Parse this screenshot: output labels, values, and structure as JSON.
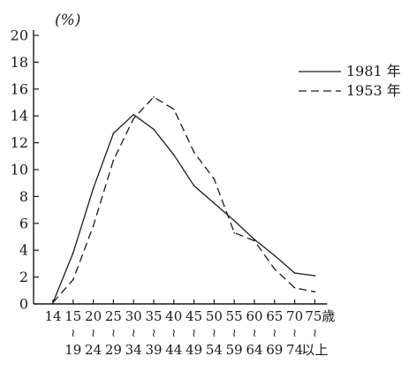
{
  "chart_data": {
    "type": "line",
    "unit_label": "(%)",
    "ylim": [
      0,
      20
    ],
    "y_ticks": [
      "0",
      "2",
      "4",
      "6",
      "8",
      "10",
      "12",
      "14",
      "16",
      "18",
      "20"
    ],
    "x_tick_labels": [
      {
        "top": "14",
        "bottom": ""
      },
      {
        "top": "15",
        "bottom": "19"
      },
      {
        "top": "20",
        "bottom": "24"
      },
      {
        "top": "25",
        "bottom": "29"
      },
      {
        "top": "30",
        "bottom": "34"
      },
      {
        "top": "35",
        "bottom": "39"
      },
      {
        "top": "40",
        "bottom": "44"
      },
      {
        "top": "45",
        "bottom": "49"
      },
      {
        "top": "50",
        "bottom": "54"
      },
      {
        "top": "55",
        "bottom": "59"
      },
      {
        "top": "60",
        "bottom": "64"
      },
      {
        "top": "65",
        "bottom": "69"
      },
      {
        "top": "70",
        "bottom": "74"
      },
      {
        "top": "75歳",
        "bottom": "以上"
      }
    ],
    "range_separator": "≀",
    "grid": false,
    "legend_position": "top-right",
    "series": [
      {
        "name": "1981 年",
        "style": "solid",
        "values": [
          0.1,
          3.8,
          8.6,
          12.7,
          14.1,
          13.0,
          11.1,
          8.8,
          7.5,
          6.2,
          4.8,
          3.6,
          2.3,
          2.1
        ]
      },
      {
        "name": "1953 年",
        "style": "dashed",
        "values": [
          0.1,
          1.8,
          5.8,
          10.7,
          13.8,
          15.4,
          14.5,
          11.3,
          9.3,
          5.3,
          4.7,
          2.6,
          1.2,
          0.9
        ]
      }
    ]
  }
}
